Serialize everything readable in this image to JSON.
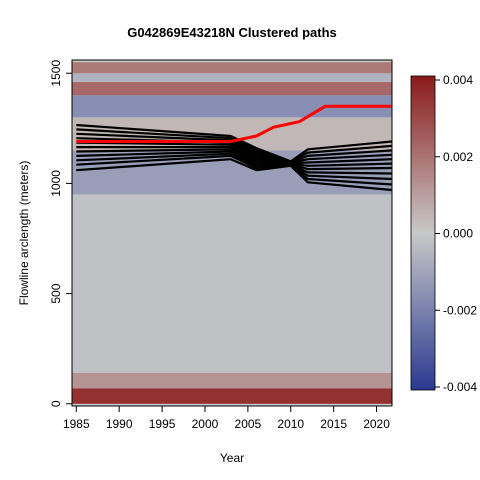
{
  "chart_data": {
    "type": "heatmap",
    "title": "G042869E43218N Clustered paths",
    "xlabel": "Year",
    "ylabel": "Flowline arclength (meters)",
    "xlim": [
      1984.5,
      2021.8
    ],
    "ylim": [
      -10,
      1560
    ],
    "x_ticks": [
      1985,
      1990,
      1995,
      2000,
      2005,
      2010,
      2015,
      2020
    ],
    "y_ticks": [
      0,
      500,
      1000,
      1500
    ],
    "colorbar": {
      "min": -0.004,
      "max": 0.004,
      "ticks": [
        0.004,
        0.002,
        0.0,
        -0.002,
        -0.004
      ],
      "tick_labels": [
        "0.004",
        "0.002",
        "0.000",
        "-0.002",
        "-0.004"
      ],
      "colors": {
        "low": "#2b3990",
        "mid": "#c8c8c8",
        "high": "#8b1a1a"
      }
    },
    "background_bands": [
      {
        "y_from": 0,
        "y_to": 70,
        "value": 0.0035
      },
      {
        "y_from": 70,
        "y_to": 140,
        "value": 0.0012
      },
      {
        "y_from": 140,
        "y_to": 950,
        "value": -0.0002
      },
      {
        "y_from": 950,
        "y_to": 1150,
        "value": -0.0012
      },
      {
        "y_from": 1150,
        "y_to": 1300,
        "value": 0.0004
      },
      {
        "y_from": 1300,
        "y_to": 1400,
        "value": -0.0016
      },
      {
        "y_from": 1400,
        "y_to": 1460,
        "value": 0.0022
      },
      {
        "y_from": 1460,
        "y_to": 1500,
        "value": -0.0006
      },
      {
        "y_from": 1500,
        "y_to": 1550,
        "value": 0.0018
      }
    ],
    "series": [
      {
        "color": "#000000",
        "x": [
          1985,
          2003,
          2006,
          2010,
          2012,
          2021.8
        ],
        "y": [
          1265,
          1215,
          1160,
          1100,
          1155,
          1190
        ]
      },
      {
        "color": "#000000",
        "x": [
          1985,
          2003,
          2006,
          2010,
          2012,
          2021.8
        ],
        "y": [
          1245,
          1205,
          1150,
          1098,
          1140,
          1170
        ]
      },
      {
        "color": "#000000",
        "x": [
          1985,
          2003,
          2006,
          2010,
          2012,
          2021.8
        ],
        "y": [
          1225,
          1195,
          1140,
          1096,
          1125,
          1150
        ]
      },
      {
        "color": "#000000",
        "x": [
          1985,
          2003,
          2006,
          2010,
          2012,
          2021.8
        ],
        "y": [
          1205,
          1185,
          1130,
          1094,
          1110,
          1130
        ]
      },
      {
        "color": "#000000",
        "x": [
          1985,
          2003,
          2006,
          2010,
          2012,
          2021.8
        ],
        "y": [
          1185,
          1175,
          1120,
          1092,
          1095,
          1110
        ]
      },
      {
        "color": "#000000",
        "x": [
          1985,
          2003,
          2006,
          2010,
          2012,
          2021.8
        ],
        "y": [
          1165,
          1165,
          1110,
          1090,
          1080,
          1090
        ]
      },
      {
        "color": "#000000",
        "x": [
          1985,
          2003,
          2006,
          2010,
          2012,
          2021.8
        ],
        "y": [
          1145,
          1155,
          1100,
          1088,
          1065,
          1070
        ]
      },
      {
        "color": "#000000",
        "x": [
          1985,
          2003,
          2006,
          2010,
          2012,
          2021.8
        ],
        "y": [
          1125,
          1145,
          1090,
          1086,
          1050,
          1045
        ]
      },
      {
        "color": "#000000",
        "x": [
          1985,
          2003,
          2006,
          2010,
          2012,
          2021.8
        ],
        "y": [
          1105,
          1135,
          1080,
          1084,
          1035,
          1020
        ]
      },
      {
        "color": "#000000",
        "x": [
          1985,
          2003,
          2006,
          2010,
          2012,
          2021.8
        ],
        "y": [
          1085,
          1125,
          1070,
          1082,
          1020,
          995
        ]
      },
      {
        "color": "#000000",
        "x": [
          1985,
          2003,
          2006,
          2010,
          2012,
          2021.8
        ],
        "y": [
          1060,
          1110,
          1060,
          1080,
          1005,
          970
        ]
      },
      {
        "color": "#ff0000",
        "x": [
          1985,
          2003,
          2006,
          2008,
          2011,
          2014,
          2021.8
        ],
        "y": [
          1190,
          1190,
          1215,
          1255,
          1280,
          1350,
          1350
        ]
      }
    ]
  }
}
